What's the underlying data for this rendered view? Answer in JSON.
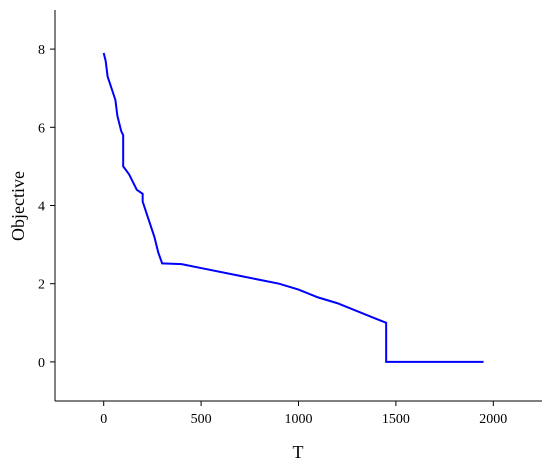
{
  "chart_data": {
    "type": "line",
    "xlabel": "T",
    "ylabel": "Objective",
    "x": [
      0,
      10,
      20,
      40,
      60,
      70,
      90,
      100,
      100,
      130,
      150,
      170,
      200,
      200,
      220,
      240,
      260,
      280,
      300,
      400,
      500,
      700,
      900,
      1000,
      1100,
      1200,
      1300,
      1400,
      1450,
      1450,
      1950
    ],
    "series": [
      {
        "name": "Objective",
        "color": "#0000ff",
        "values": [
          7.9,
          7.7,
          7.3,
          7.0,
          6.7,
          6.3,
          5.9,
          5.8,
          5.0,
          4.8,
          4.6,
          4.4,
          4.3,
          4.1,
          3.8,
          3.5,
          3.2,
          2.8,
          2.52,
          2.5,
          2.4,
          2.2,
          2.0,
          1.85,
          1.65,
          1.5,
          1.3,
          1.1,
          1.0,
          0,
          0
        ]
      }
    ],
    "xlim": [
      -250,
      2250
    ],
    "ylim": [
      -1,
      9
    ],
    "xticks": [
      0,
      500,
      1000,
      1500,
      2000
    ],
    "yticks": [
      0,
      2,
      4,
      6,
      8
    ]
  }
}
